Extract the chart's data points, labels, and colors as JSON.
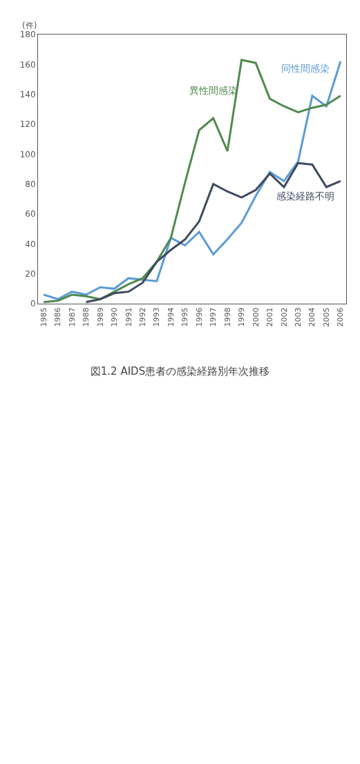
{
  "chart_data": {
    "type": "line",
    "title": "図1.2 AIDS患者の感染経路別年次推移",
    "ylabel": "(件)",
    "x": [
      1985,
      1986,
      1987,
      1988,
      1989,
      1990,
      1991,
      1992,
      1993,
      1994,
      1995,
      1996,
      1997,
      1998,
      1999,
      2000,
      2001,
      2002,
      2003,
      2004,
      2005,
      2006
    ],
    "xlim": [
      1984.6,
      2006.4
    ],
    "xticks": [
      1985,
      1986,
      1987,
      1988,
      1989,
      1990,
      1991,
      1992,
      1993,
      1994,
      1995,
      1996,
      1997,
      1998,
      1999,
      2000,
      2001,
      2002,
      2003,
      2004,
      2005,
      2006
    ],
    "ylim": [
      0,
      180
    ],
    "yticks": [
      0,
      20,
      40,
      60,
      80,
      100,
      120,
      140,
      160,
      180
    ],
    "legend": false,
    "marker": "none",
    "line_style": "solid",
    "series": [
      {
        "name": "同性間感染",
        "color": "#5b9bd5",
        "values": [
          6,
          3,
          8,
          6,
          11,
          10,
          17,
          16,
          15,
          44,
          39,
          48,
          33,
          43,
          54,
          72,
          88,
          82,
          95,
          139,
          132,
          162
        ]
      },
      {
        "name": "異性間感染",
        "color": "#4e8a4e",
        "values": [
          1,
          2,
          6,
          5,
          3,
          8,
          13,
          17,
          28,
          44,
          81,
          116,
          124,
          102,
          163,
          161,
          137,
          132,
          128,
          131,
          133,
          139
        ]
      },
      {
        "name": "感染経路不明",
        "color": "#3d4a5e",
        "values": [
          null,
          null,
          null,
          1,
          3,
          7,
          8,
          14,
          28,
          36,
          43,
          55,
          80,
          75,
          71,
          76,
          87,
          78,
          94,
          93,
          78,
          82
        ]
      }
    ]
  }
}
